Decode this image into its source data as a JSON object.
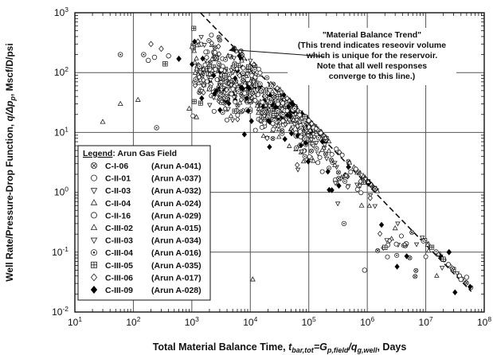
{
  "chart_data": {
    "type": "scatter",
    "title": "",
    "xlabel_parts": [
      "Total Material Balance Time, ",
      "t",
      "bar,tot",
      "=G",
      "p,field",
      "/q",
      "g,well",
      ", Days"
    ],
    "ylabel_parts": [
      "Well Rate/Pressure-Drop Function, ",
      "q/Δp",
      "p",
      ", Mscf/D/psi"
    ],
    "xscale": "log",
    "yscale": "log",
    "xlim": [
      10,
      100000000
    ],
    "ylim": [
      0.01,
      1000
    ],
    "x_ticks": [
      {
        "v": 10,
        "b": "10",
        "e": "1"
      },
      {
        "v": 100,
        "b": "10",
        "e": "2"
      },
      {
        "v": 1000,
        "b": "10",
        "e": "3"
      },
      {
        "v": 10000,
        "b": "10",
        "e": "4"
      },
      {
        "v": 100000,
        "b": "10",
        "e": "5"
      },
      {
        "v": 1000000,
        "b": "10",
        "e": "6"
      },
      {
        "v": 10000000,
        "b": "10",
        "e": "7"
      },
      {
        "v": 100000000,
        "b": "10",
        "e": "8"
      }
    ],
    "y_ticks": [
      {
        "v": 0.01,
        "b": "10",
        "e": "-2"
      },
      {
        "v": 0.1,
        "b": "10",
        "e": "-1"
      },
      {
        "v": 1,
        "b": "10",
        "e": "0"
      },
      {
        "v": 10,
        "b": "10",
        "e": "1"
      },
      {
        "v": 100,
        "b": "10",
        "e": "2"
      },
      {
        "v": 1000,
        "b": "10",
        "e": "3"
      }
    ],
    "grid": true,
    "legend": {
      "placement": "bottom-left",
      "title_bold": "Legend",
      "title_rest": ": Arun Gas Field",
      "entries": [
        {
          "well": "C-I-06",
          "name": "(Arun A-041)",
          "marker": "circle-x"
        },
        {
          "well": "C-II-01",
          "name": "(Arun A-037)",
          "marker": "circle"
        },
        {
          "well": "C-II-03",
          "name": "(Arun A-032)",
          "marker": "triangle-down"
        },
        {
          "well": "C-II-04",
          "name": "(Arun A-024)",
          "marker": "triangle-up"
        },
        {
          "well": "C-II-16",
          "name": "(Arun A-029)",
          "marker": "circle"
        },
        {
          "well": "C-III-02",
          "name": "(Arun A-015)",
          "marker": "triangle-up"
        },
        {
          "well": "C-III-03",
          "name": "(Arun A-034)",
          "marker": "triangle-down"
        },
        {
          "well": "C-III-04",
          "name": "(Arun A-016)",
          "marker": "circle-dot"
        },
        {
          "well": "C-III-05",
          "name": "(Arun A-035)",
          "marker": "square-plus"
        },
        {
          "well": "C-III-06",
          "name": "(Arun A-017)",
          "marker": "diamond"
        },
        {
          "well": "C-III-09",
          "name": "(Arun A-028)",
          "marker": "diamond-filled"
        }
      ]
    },
    "annotation": {
      "lines": [
        "\"Material Balance Trend\"",
        "(This trend indicates reseovir volume",
        "which is unique for the reservoir.",
        "Note that all well responses",
        "converge to this line.)"
      ],
      "arrow_to": {
        "x": 4000,
        "y": 220
      }
    },
    "trend_line": {
      "style": "dashed",
      "points": [
        [
          1400,
          1000
        ],
        [
          60000000,
          0.022
        ]
      ]
    },
    "scatter_clusters": [
      {
        "x_range": [
          1000,
          3000
        ],
        "center_y": 120,
        "spread": 0.35,
        "count": 120
      },
      {
        "x_range": [
          3000,
          15000
        ],
        "center_y": 60,
        "spread": 0.28,
        "count": 260
      },
      {
        "x_range": [
          15000,
          60000
        ],
        "center_y": 25,
        "spread": 0.22,
        "count": 260
      },
      {
        "x_range": [
          60000,
          200000
        ],
        "center_y": 10,
        "spread": 0.25,
        "count": 150
      },
      {
        "x_range": [
          200000,
          1500000
        ],
        "center_y": 2.5,
        "spread": 0.28,
        "count": 90
      },
      {
        "x_range": [
          1500000,
          60000000
        ],
        "center_y": 0.12,
        "spread": 0.25,
        "count": 60
      }
    ],
    "outlier_points": [
      {
        "x": 150,
        "y": 200,
        "marker": "circle-dot"
      },
      {
        "x": 200,
        "y": 300,
        "marker": "diamond"
      },
      {
        "x": 230,
        "y": 180,
        "marker": "circle"
      },
      {
        "x": 300,
        "y": 250,
        "marker": "diamond"
      },
      {
        "x": 400,
        "y": 190,
        "marker": "circle"
      },
      {
        "x": 180,
        "y": 160,
        "marker": "circle"
      },
      {
        "x": 350,
        "y": 140,
        "marker": "square-plus"
      },
      {
        "x": 600,
        "y": 170,
        "marker": "diamond-filled"
      },
      {
        "x": 60,
        "y": 200,
        "marker": "circle-dot"
      },
      {
        "x": 120,
        "y": 35,
        "marker": "triangle-up"
      },
      {
        "x": 60,
        "y": 30,
        "marker": "triangle-up"
      },
      {
        "x": 30,
        "y": 15,
        "marker": "triangle-up"
      },
      {
        "x": 250,
        "y": 12,
        "marker": "circle-dot"
      },
      {
        "x": 900,
        "y": 25,
        "marker": "triangle-up"
      },
      {
        "x": 1200,
        "y": 18,
        "marker": "triangle-up"
      },
      {
        "x": 11000,
        "y": 0.035,
        "marker": "triangle-up"
      },
      {
        "x": 400000,
        "y": 0.3,
        "marker": "circle-dot"
      },
      {
        "x": 900000,
        "y": 0.05,
        "marker": "circle"
      },
      {
        "x": 2000000,
        "y": 0.12,
        "marker": "square-plus"
      },
      {
        "x": 3000000,
        "y": 0.25,
        "marker": "triangle-up"
      },
      {
        "x": 800000,
        "y": 0.6,
        "marker": "triangle-up"
      },
      {
        "x": 25000000,
        "y": 0.1,
        "marker": "diamond-filled"
      },
      {
        "x": 40000000,
        "y": 0.035,
        "marker": "circle"
      },
      {
        "x": 50000000,
        "y": 0.038,
        "marker": "circle"
      }
    ]
  }
}
